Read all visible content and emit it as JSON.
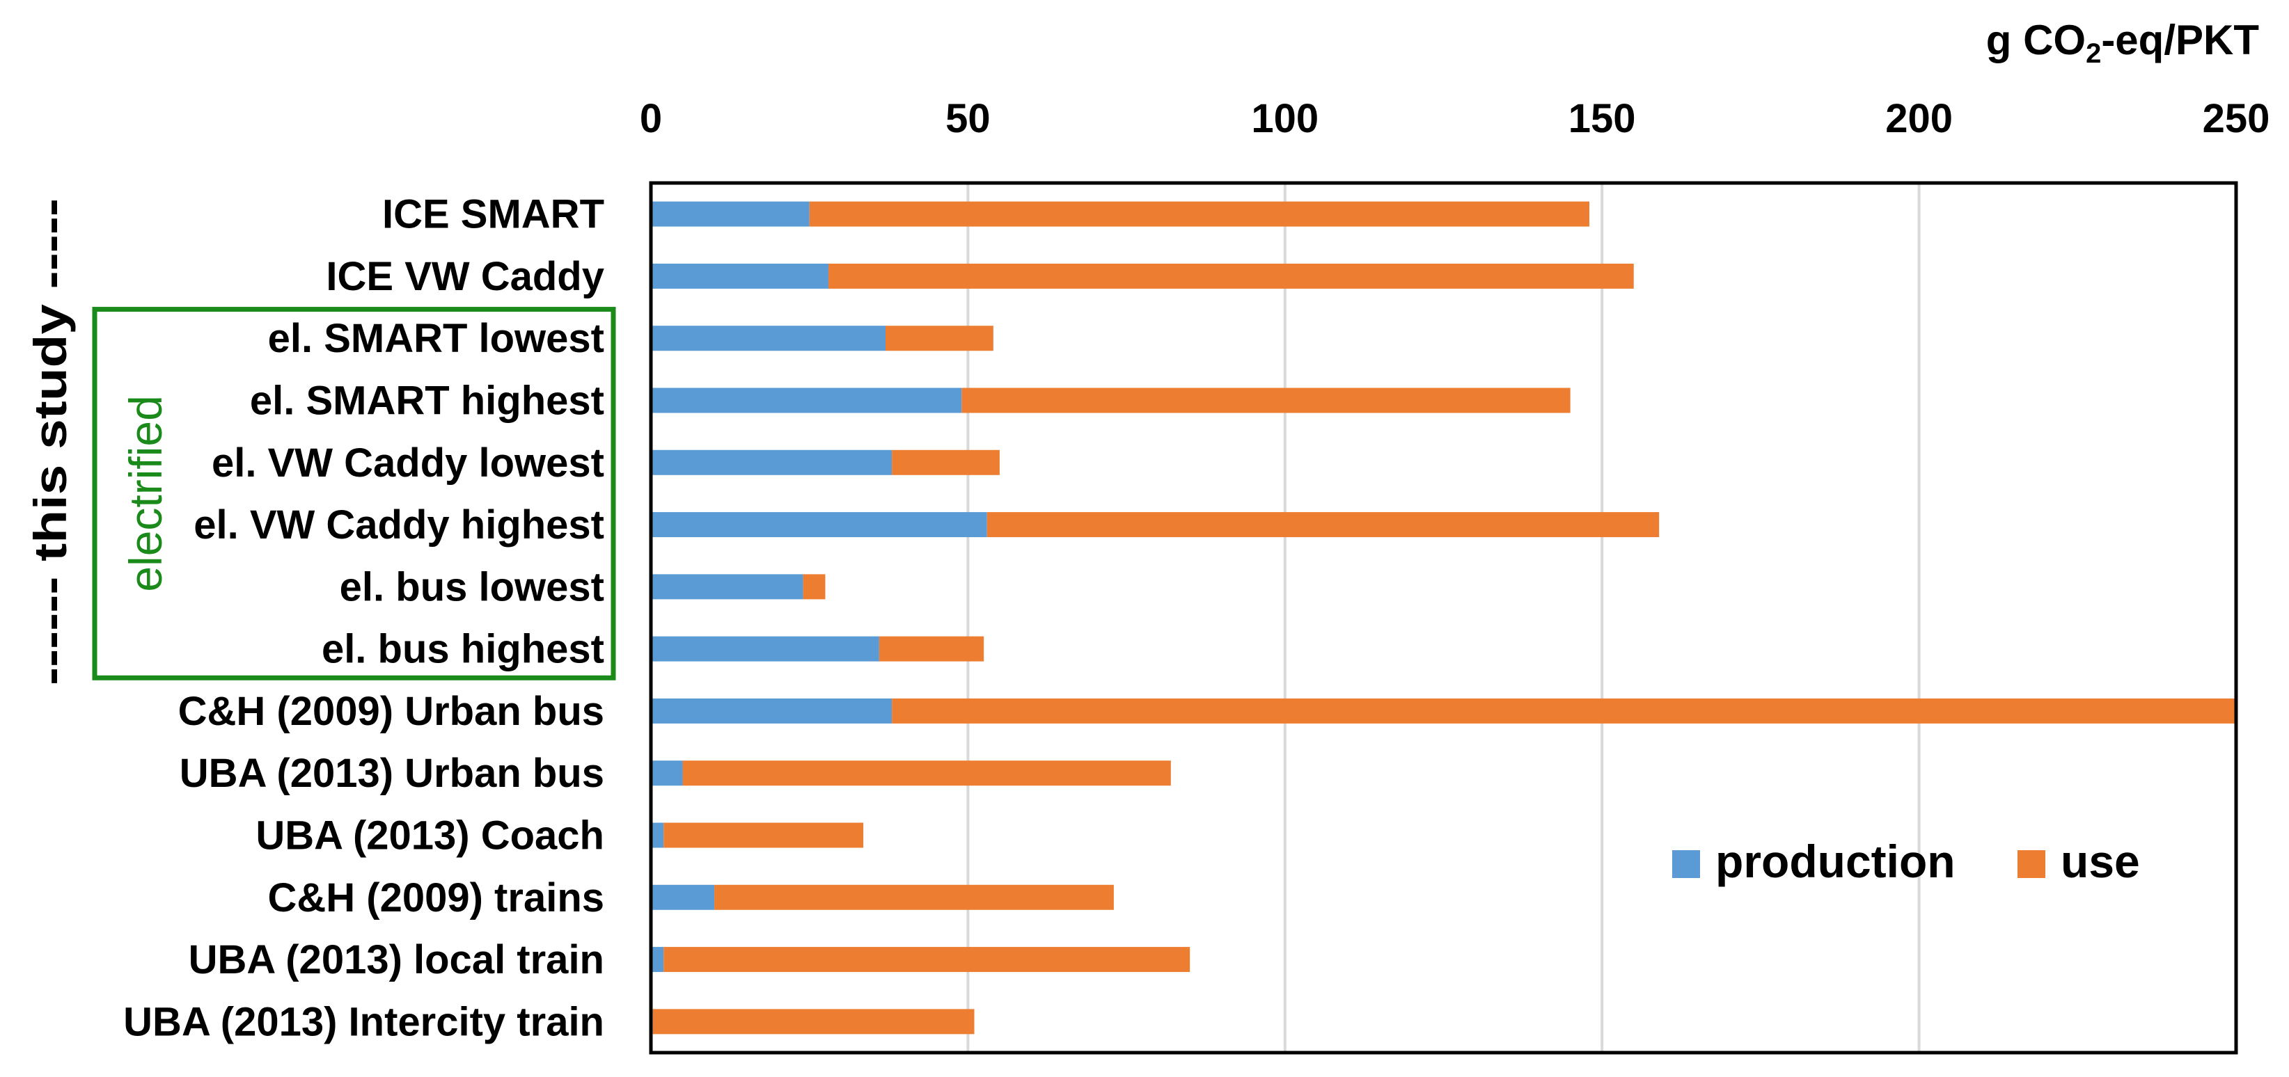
{
  "chart_data": {
    "type": "bar",
    "orientation": "horizontal",
    "stacked": true,
    "unit_label": {
      "prefix": "g CO",
      "subscript": "2",
      "suffix": "-eq/PKT"
    },
    "xlim": [
      0,
      250
    ],
    "xticks": [
      "0",
      "50",
      "100",
      "150",
      "200",
      "250"
    ],
    "grid": true,
    "legend_position": "bottom-right",
    "categories": [
      "ICE SMART",
      "ICE VW Caddy",
      "el. SMART lowest",
      "el. SMART highest",
      "el. VW Caddy lowest",
      "el. VW Caddy highest",
      "el. bus lowest",
      "el. bus highest",
      "C&H (2009) Urban bus",
      "UBA (2013) Urban bus",
      "UBA (2013) Coach",
      "C&H (2009) trains",
      "UBA (2013) local train",
      "UBA (2013) Intercity train"
    ],
    "series": [
      {
        "name": "production",
        "color": "#5b9bd5",
        "values": [
          25,
          28,
          37,
          49,
          38,
          53,
          24,
          36,
          38,
          5,
          2,
          10,
          2,
          0.3
        ]
      },
      {
        "name": "use",
        "color": "#ed7d31",
        "values": [
          123,
          127,
          17,
          96,
          17,
          106,
          3.5,
          16.5,
          212,
          77,
          31.5,
          63,
          83,
          50.7
        ]
      }
    ],
    "annotations": {
      "bracket_text": "------ this  study -----",
      "bracket_color": "#ff0000",
      "group_box_text": "electrified",
      "group_box_color": "#1a8a1a",
      "group_box_categories": [
        2,
        7
      ]
    }
  }
}
